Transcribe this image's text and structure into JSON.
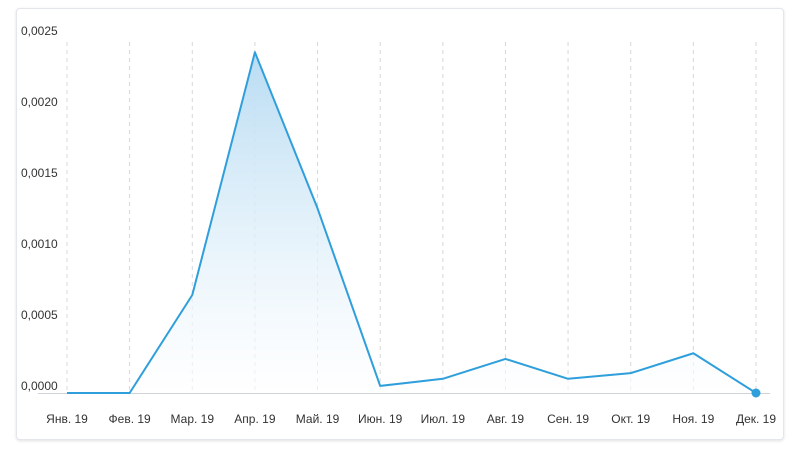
{
  "chart_data": {
    "type": "area",
    "x": [
      "Янв. 19",
      "Фев. 19",
      "Мар. 19",
      "Апр. 19",
      "Май. 19",
      "Июн. 19",
      "Июл. 19",
      "Авг. 19",
      "Сен. 19",
      "Окт. 19",
      "Ноя. 19",
      "Дек. 19"
    ],
    "series": [
      {
        "values": [
          0.0,
          0.0,
          0.00069,
          0.0024,
          0.0013,
          5e-05,
          0.0001,
          0.00024,
          0.0001,
          0.00014,
          0.00028,
          0.0
        ]
      }
    ],
    "y_ticks": [
      "0,0000",
      "0,0005",
      "0,0010",
      "0,0015",
      "0,0020",
      "0,0025"
    ],
    "ylim": [
      0,
      0.0025
    ],
    "title": "",
    "xlabel": "",
    "ylabel": "",
    "grid": "vertical-dashed",
    "colors": {
      "line": "#2f9fdb",
      "fill_top": "#b9dcf3",
      "fill_bottom": "#ffffff",
      "grid": "#d4d7db",
      "axis": "#cfd3d7",
      "text": "#333333"
    }
  }
}
